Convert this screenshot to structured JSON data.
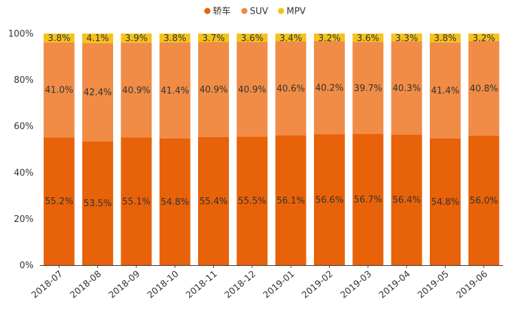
{
  "chart_data": {
    "type": "bar",
    "stacked": true,
    "percent": true,
    "categories": [
      "2018-07",
      "2018-08",
      "2018-09",
      "2018-10",
      "2018-11",
      "2018-12",
      "2019-01",
      "2019-02",
      "2019-03",
      "2019-04",
      "2019-05",
      "2019-06"
    ],
    "series": [
      {
        "name": "轿车",
        "color": "#e8620a",
        "values": [
          55.2,
          53.5,
          55.1,
          54.8,
          55.4,
          55.5,
          56.1,
          56.6,
          56.7,
          56.4,
          54.8,
          56.0
        ],
        "labels": [
          "55.2%",
          "53.5%",
          "55.1%",
          "54.8%",
          "55.4%",
          "55.5%",
          "56.1%",
          "56.6%",
          "56.7%",
          "56.4%",
          "54.8%",
          "56.0%"
        ]
      },
      {
        "name": "SUV",
        "color": "#f08c46",
        "values": [
          41.0,
          42.4,
          40.9,
          41.4,
          40.9,
          40.9,
          40.6,
          40.2,
          39.7,
          40.3,
          41.4,
          40.8
        ],
        "labels": [
          "41.0%",
          "42.4%",
          "40.9%",
          "41.4%",
          "40.9%",
          "40.9%",
          "40.6%",
          "40.2%",
          "39.7%",
          "40.3%",
          "41.4%",
          "40.8%"
        ]
      },
      {
        "name": "MPV",
        "color": "#f6c21a",
        "values": [
          3.8,
          4.1,
          3.9,
          3.8,
          3.7,
          3.6,
          3.4,
          3.2,
          3.6,
          3.3,
          3.8,
          3.2
        ],
        "labels": [
          "3.8%",
          "4.1%",
          "3.9%",
          "3.8%",
          "3.7%",
          "3.6%",
          "3.4%",
          "3.2%",
          "3.6%",
          "3.3%",
          "3.8%",
          "3.2%"
        ]
      }
    ],
    "y_ticks": [
      "0%",
      "20%",
      "40%",
      "60%",
      "80%",
      "100%"
    ],
    "ylim": [
      0,
      100
    ],
    "legend_position": "top-center",
    "grid": false
  }
}
